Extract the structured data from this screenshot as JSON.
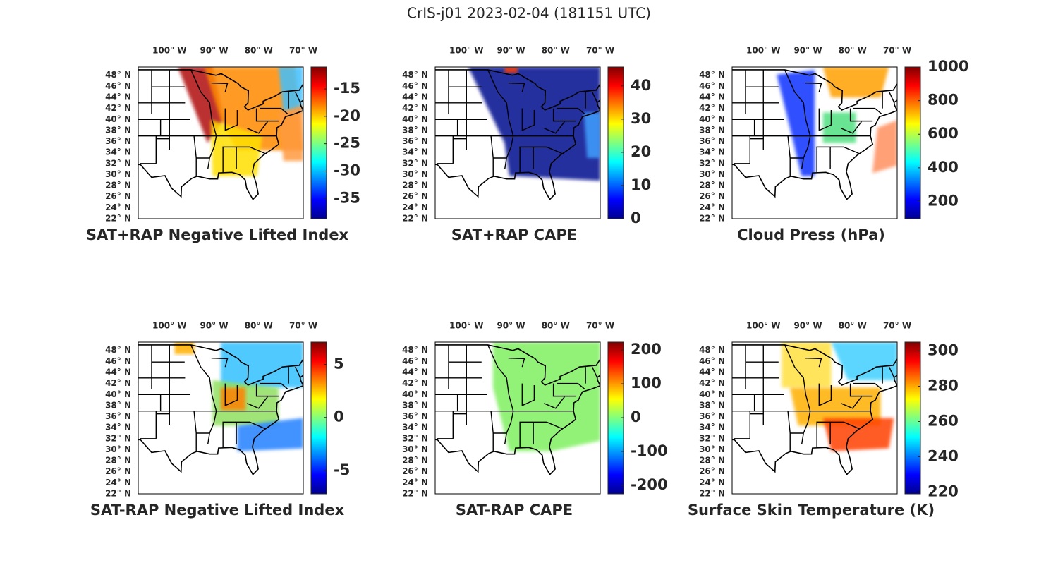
{
  "title": "CrIS-j01 2023-02-04 (181151 UTC)",
  "map": {
    "lon_lim": [
      107,
      70
    ],
    "lat_lim": [
      22,
      49.5
    ],
    "lon_ticks": [
      {
        "value": 100,
        "label": "100° W"
      },
      {
        "value": 90,
        "label": "90° W"
      },
      {
        "value": 80,
        "label": "80° W"
      },
      {
        "value": 70,
        "label": "70° W"
      }
    ],
    "lat_ticks": [
      {
        "value": 22,
        "label": "22° N"
      },
      {
        "value": 24,
        "label": "24° N"
      },
      {
        "value": 26,
        "label": "26° N"
      },
      {
        "value": 28,
        "label": "28° N"
      },
      {
        "value": 30,
        "label": "30° N"
      },
      {
        "value": 32,
        "label": "32° N"
      },
      {
        "value": 34,
        "label": "34° N"
      },
      {
        "value": 36,
        "label": "36° N"
      },
      {
        "value": 38,
        "label": "38° N"
      },
      {
        "value": 40,
        "label": "40° N"
      },
      {
        "value": 42,
        "label": "42° N"
      },
      {
        "value": 44,
        "label": "44° N"
      },
      {
        "value": 46,
        "label": "46° N"
      },
      {
        "value": 48,
        "label": "48° N"
      }
    ]
  },
  "panels": [
    {
      "title": "SAT+RAP Negative Lifted Index",
      "clim": [
        -38.7,
        -11
      ],
      "cticks": [
        -35,
        -30,
        -25,
        -20,
        -15
      ]
    },
    {
      "title": "SAT+RAP CAPE",
      "clim": [
        0,
        45.7
      ],
      "cticks": [
        0,
        10,
        20,
        30,
        40
      ]
    },
    {
      "title": "Cloud Press (hPa)",
      "clim": [
        97,
        1000
      ],
      "cticks": [
        200,
        400,
        600,
        800,
        1000
      ]
    },
    {
      "title": "SAT-RAP Negative Lifted Index",
      "clim": [
        -7.2,
        7.1
      ],
      "cticks": [
        -5,
        0,
        5
      ]
    },
    {
      "title": "SAT-RAP CAPE",
      "clim": [
        -225,
        223
      ],
      "cticks": [
        -200,
        -100,
        0,
        100,
        200
      ]
    },
    {
      "title": "Surface Skin Temperature (K)",
      "clim": [
        219,
        305
      ],
      "cticks": [
        220,
        240,
        260,
        280,
        300
      ]
    }
  ]
}
